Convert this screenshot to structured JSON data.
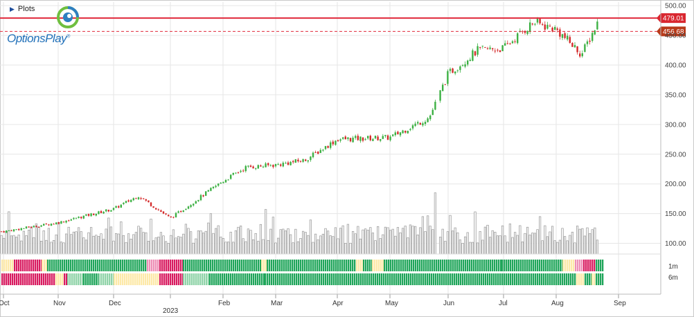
{
  "toolbar": {
    "plots_label": "Plots"
  },
  "logo": {
    "text": "OptionsPlay",
    "trademark": "®"
  },
  "colors": {
    "up": "#3cb043",
    "down": "#d42a2a",
    "volume_fill": "#f2f2f2",
    "volume_stroke": "#8c8c8c",
    "resistance_line": "#e0283a",
    "support_line": "#e0283a",
    "badge_upper": "#d9262f",
    "badge_lower": "#b83a1a",
    "heat_green": "#1fa55a",
    "heat_lightgreen": "#8fd3a8",
    "heat_pink": "#d81b60",
    "heat_lightpink": "#ee8fb6",
    "heat_yellow": "#fde9a8"
  },
  "chart_data": {
    "type": "candlestick",
    "title": "",
    "y_axis": {
      "range": [
        82,
        506
      ],
      "ticks": [
        100,
        150,
        200,
        250,
        300,
        350,
        400,
        450,
        500
      ],
      "tick_labels": [
        "100.00",
        "150.00",
        "200.00",
        "250.00",
        "300.00",
        "350.00",
        "400.00",
        "450.00",
        "500.00"
      ]
    },
    "x_axis": {
      "tick_labels": [
        "Oct",
        "Nov",
        "Dec",
        "2023",
        "Feb",
        "Mar",
        "Apr",
        "May",
        "Jun",
        "Jul",
        "Aug",
        "Sep"
      ],
      "year_label": "2023"
    },
    "price_levels": [
      {
        "name": "resistance",
        "value": 479.01,
        "label": "479.01",
        "style": "solid"
      },
      {
        "name": "last",
        "value": 456.68,
        "label": "456.68",
        "style": "dashed"
      }
    ],
    "price_anchors": [
      {
        "month": "Oct",
        "close": 120
      },
      {
        "month": "Nov",
        "close": 135
      },
      {
        "month": "Dec",
        "close": 158
      },
      {
        "month": "Dec-mid",
        "close": 180
      },
      {
        "month": "2023",
        "close": 142
      },
      {
        "month": "Feb",
        "close": 205
      },
      {
        "month": "Feb-mid",
        "close": 228
      },
      {
        "month": "Mar",
        "close": 232
      },
      {
        "month": "Mar-mid",
        "close": 240
      },
      {
        "month": "Apr",
        "close": 275
      },
      {
        "month": "May",
        "close": 278
      },
      {
        "month": "May-end",
        "close": 312
      },
      {
        "month": "Jun",
        "close": 385
      },
      {
        "month": "Jun-mid",
        "close": 425
      },
      {
        "month": "Jul",
        "close": 428
      },
      {
        "month": "Jul-mid",
        "close": 472
      },
      {
        "month": "Aug",
        "close": 460
      },
      {
        "month": "Aug-mid",
        "close": 418
      },
      {
        "month": "Aug-end",
        "close": 479
      }
    ],
    "volume_note": "Volume bars displayed on price scale, mostly 100–140 with spikes up to ~185",
    "heatmap_rows": [
      {
        "name": "1m",
        "label": "1m"
      },
      {
        "name": "6m",
        "label": "6m"
      }
    ],
    "grid": true,
    "legend": "none"
  }
}
